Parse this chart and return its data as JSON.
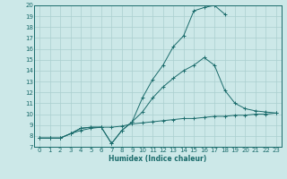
{
  "xlabel": "Humidex (Indice chaleur)",
  "bg_color": "#cce8e8",
  "grid_color": "#aacfcf",
  "line_color": "#1a6b6b",
  "xlim": [
    -0.5,
    23.5
  ],
  "ylim": [
    7,
    20
  ],
  "xticks": [
    0,
    1,
    2,
    3,
    4,
    5,
    6,
    7,
    8,
    9,
    10,
    11,
    12,
    13,
    14,
    15,
    16,
    17,
    18,
    19,
    20,
    21,
    22,
    23
  ],
  "yticks": [
    7,
    8,
    9,
    10,
    11,
    12,
    13,
    14,
    15,
    16,
    17,
    18,
    19,
    20
  ],
  "line1_x": [
    0,
    1,
    2,
    3,
    4,
    5,
    6,
    7,
    8,
    9,
    10,
    11,
    12,
    13,
    14,
    15,
    16,
    17,
    18
  ],
  "line1_y": [
    7.8,
    7.8,
    7.8,
    8.2,
    8.7,
    8.8,
    8.8,
    7.3,
    8.5,
    9.3,
    11.5,
    13.2,
    14.5,
    16.2,
    17.2,
    19.5,
    19.8,
    20.0,
    19.2
  ],
  "line2_x": [
    0,
    1,
    2,
    3,
    4,
    5,
    6,
    7,
    8,
    9,
    10,
    11,
    12,
    13,
    14,
    15,
    16,
    17,
    18,
    19,
    20,
    21,
    22,
    23
  ],
  "line2_y": [
    7.8,
    7.8,
    7.8,
    8.2,
    8.7,
    8.8,
    8.8,
    7.3,
    8.5,
    9.3,
    10.2,
    11.5,
    12.5,
    13.3,
    14.0,
    14.5,
    15.2,
    14.5,
    12.2,
    11.0,
    10.5,
    10.3,
    10.2,
    10.1
  ],
  "line3_x": [
    0,
    1,
    2,
    3,
    4,
    5,
    6,
    7,
    8,
    9,
    10,
    11,
    12,
    13,
    14,
    15,
    16,
    17,
    18,
    19,
    20,
    21,
    22,
    23
  ],
  "line3_y": [
    7.8,
    7.8,
    7.8,
    8.2,
    8.5,
    8.7,
    8.8,
    8.8,
    8.9,
    9.1,
    9.2,
    9.3,
    9.4,
    9.5,
    9.6,
    9.6,
    9.7,
    9.8,
    9.8,
    9.9,
    9.9,
    10.0,
    10.0,
    10.1
  ]
}
